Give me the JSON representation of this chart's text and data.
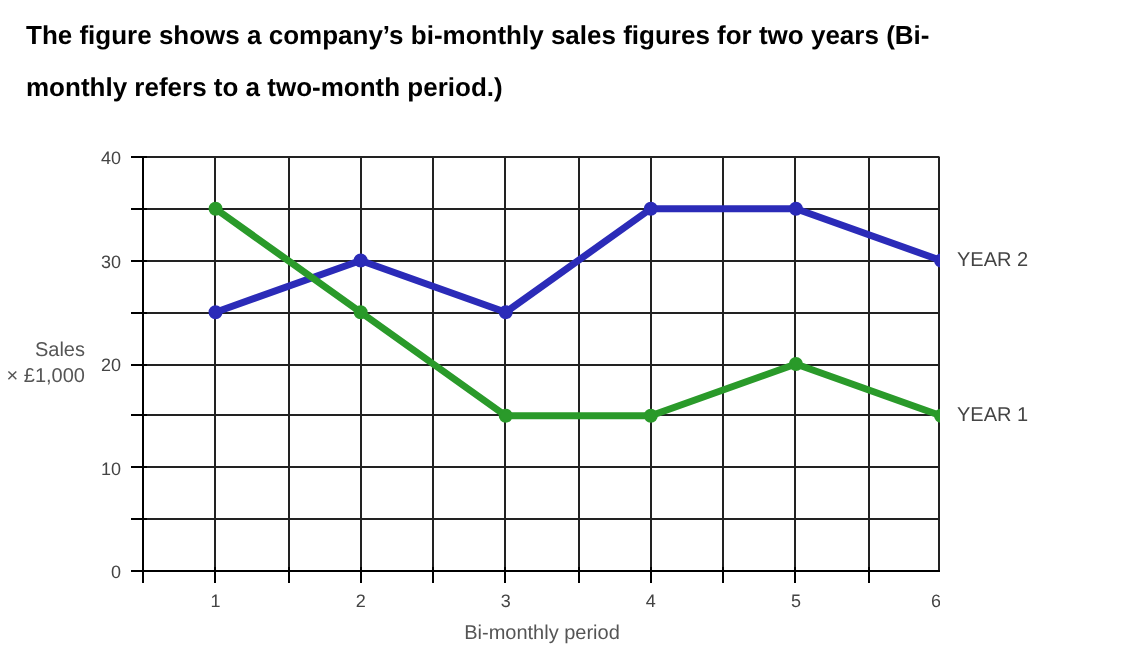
{
  "chart_data": {
    "type": "line",
    "title": "The figure shows a company’s bi-monthly sales figures for two years (Bi-monthly refers to a two-month period.)",
    "xlabel": "Bi-monthly period",
    "ylabel": "Sales\n× £1,000",
    "x": [
      1,
      2,
      3,
      4,
      5,
      6
    ],
    "series": [
      {
        "name": "YEAR 2",
        "color": "#2b2bb8",
        "values": [
          25,
          30,
          25,
          35,
          35,
          30
        ]
      },
      {
        "name": "YEAR 1",
        "color": "#2a9a2a",
        "values": [
          35,
          25,
          15,
          15,
          20,
          15
        ]
      }
    ],
    "xlim": [
      0.5,
      6
    ],
    "ylim": [
      0,
      40
    ],
    "xticks": [
      {
        "value": 0.5,
        "label": null
      },
      1,
      {
        "value": 1.5,
        "label": null
      },
      2,
      {
        "value": 2.5,
        "label": null
      },
      3,
      {
        "value": 3.5,
        "label": null
      },
      4,
      {
        "value": 4.5,
        "label": null
      },
      5,
      {
        "value": 5.5,
        "label": null
      },
      6
    ],
    "yticks": [
      0,
      {
        "value": 5,
        "label": null
      },
      10,
      {
        "value": 15,
        "label": null
      },
      20,
      {
        "value": 25,
        "label": null
      },
      30,
      {
        "value": 35,
        "label": null
      },
      40
    ],
    "grid": true,
    "marker": "circle",
    "line_style": "solid"
  }
}
